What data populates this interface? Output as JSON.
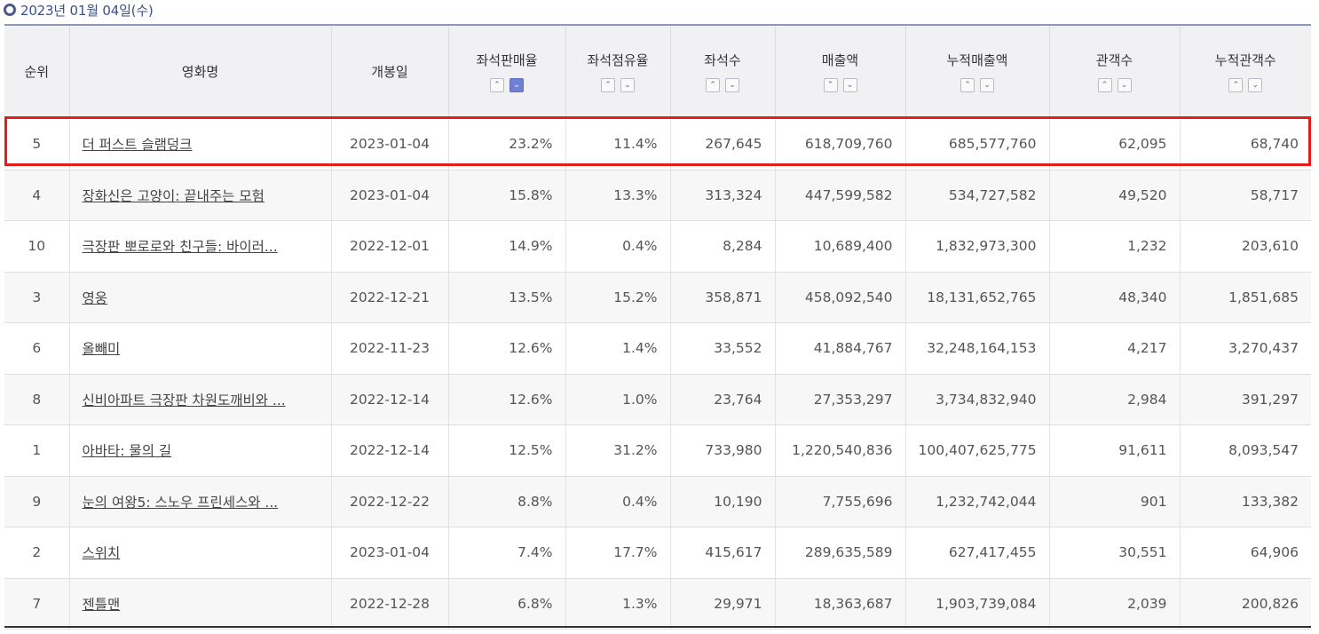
{
  "date_label": "2023년 01월 04일(수)",
  "columns": {
    "rank": "순위",
    "title": "영화명",
    "open_date": "개봉일",
    "seat_sales_rate": "좌석판매율",
    "seat_share": "좌석점유율",
    "seats": "좌석수",
    "revenue": "매출액",
    "cum_revenue": "누적매출액",
    "audience": "관객수",
    "cum_audience": "누적관객수"
  },
  "sort_up_symbol": "⌃",
  "sort_down_symbol": "⌄",
  "active_sort": "seat_sales_rate-desc",
  "highlight_color": "#e31c1c",
  "rows": [
    {
      "rank": "5",
      "title": "더 퍼스트 슬램덩크",
      "open_date": "2023-01-04",
      "seat_sales_rate": "23.2%",
      "seat_share": "11.4%",
      "seats": "267,645",
      "revenue": "618,709,760",
      "cum_revenue": "685,577,760",
      "audience": "62,095",
      "cum_audience": "68,740"
    },
    {
      "rank": "4",
      "title": "장화신은 고양이: 끝내주는 모험",
      "open_date": "2023-01-04",
      "seat_sales_rate": "15.8%",
      "seat_share": "13.3%",
      "seats": "313,324",
      "revenue": "447,599,582",
      "cum_revenue": "534,727,582",
      "audience": "49,520",
      "cum_audience": "58,717"
    },
    {
      "rank": "10",
      "title": "극장판 뽀로로와 친구들: 바이러...",
      "open_date": "2022-12-01",
      "seat_sales_rate": "14.9%",
      "seat_share": "0.4%",
      "seats": "8,284",
      "revenue": "10,689,400",
      "cum_revenue": "1,832,973,300",
      "audience": "1,232",
      "cum_audience": "203,610"
    },
    {
      "rank": "3",
      "title": "영웅",
      "open_date": "2022-12-21",
      "seat_sales_rate": "13.5%",
      "seat_share": "15.2%",
      "seats": "358,871",
      "revenue": "458,092,540",
      "cum_revenue": "18,131,652,765",
      "audience": "48,340",
      "cum_audience": "1,851,685"
    },
    {
      "rank": "6",
      "title": "올빼미",
      "open_date": "2022-11-23",
      "seat_sales_rate": "12.6%",
      "seat_share": "1.4%",
      "seats": "33,552",
      "revenue": "41,884,767",
      "cum_revenue": "32,248,164,153",
      "audience": "4,217",
      "cum_audience": "3,270,437"
    },
    {
      "rank": "8",
      "title": "신비아파트 극장판 차원도깨비와 ...",
      "open_date": "2022-12-14",
      "seat_sales_rate": "12.6%",
      "seat_share": "1.0%",
      "seats": "23,764",
      "revenue": "27,353,297",
      "cum_revenue": "3,734,832,940",
      "audience": "2,984",
      "cum_audience": "391,297"
    },
    {
      "rank": "1",
      "title": "아바타: 물의 길",
      "open_date": "2022-12-14",
      "seat_sales_rate": "12.5%",
      "seat_share": "31.2%",
      "seats": "733,980",
      "revenue": "1,220,540,836",
      "cum_revenue": "100,407,625,775",
      "audience": "91,611",
      "cum_audience": "8,093,547"
    },
    {
      "rank": "9",
      "title": "눈의 여왕5: 스노우 프린세스와 ...",
      "open_date": "2022-12-22",
      "seat_sales_rate": "8.8%",
      "seat_share": "0.4%",
      "seats": "10,190",
      "revenue": "7,755,696",
      "cum_revenue": "1,232,742,044",
      "audience": "901",
      "cum_audience": "133,382"
    },
    {
      "rank": "2",
      "title": "스위치",
      "open_date": "2023-01-04",
      "seat_sales_rate": "7.4%",
      "seat_share": "17.7%",
      "seats": "415,617",
      "revenue": "289,635,589",
      "cum_revenue": "627,417,455",
      "audience": "30,551",
      "cum_audience": "64,906"
    },
    {
      "rank": "7",
      "title": "젠틀맨",
      "open_date": "2022-12-28",
      "seat_sales_rate": "6.8%",
      "seat_share": "1.3%",
      "seats": "29,971",
      "revenue": "18,363,687",
      "cum_revenue": "1,903,739,084",
      "audience": "2,039",
      "cum_audience": "200,826"
    }
  ]
}
